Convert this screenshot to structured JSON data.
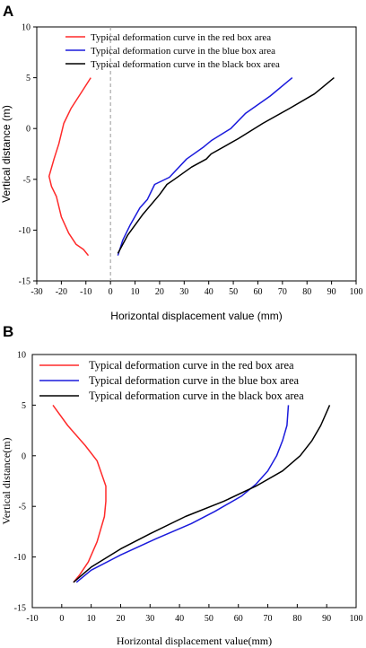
{
  "chart_data": [
    {
      "panel": "A",
      "type": "line",
      "xlabel": "Horizontal displacement value (mm)",
      "ylabel": "Vertical distance (m)",
      "xlim": [
        -30,
        100
      ],
      "ylim": [
        -15,
        10
      ],
      "xticks": [
        -30,
        -20,
        -10,
        0,
        10,
        20,
        30,
        40,
        50,
        60,
        70,
        80,
        90,
        100
      ],
      "yticks": [
        -15,
        -10,
        -5,
        0,
        5,
        10
      ],
      "zero_line": true,
      "legend": "top-left",
      "series": [
        {
          "name": "Typical deformation curve in the red box area",
          "color": "#ff2a2a",
          "points": [
            [
              -8,
              5
            ],
            [
              -12,
              3.5
            ],
            [
              -16,
              2
            ],
            [
              -19,
              0.5
            ],
            [
              -21,
              -1.5
            ],
            [
              -23,
              -3
            ],
            [
              -25,
              -4.7
            ],
            [
              -24,
              -5.7
            ],
            [
              -22,
              -6.7
            ],
            [
              -20,
              -8.7
            ],
            [
              -17,
              -10.3
            ],
            [
              -14,
              -11.4
            ],
            [
              -11,
              -11.9
            ],
            [
              -9,
              -12.5
            ]
          ]
        },
        {
          "name": "Typical deformation curve in the blue box area",
          "color": "#1a1adc",
          "points": [
            [
              74,
              5
            ],
            [
              65,
              3.2
            ],
            [
              55,
              1.5
            ],
            [
              49,
              0
            ],
            [
              41,
              -1.2
            ],
            [
              38,
              -1.8
            ],
            [
              31,
              -3
            ],
            [
              24,
              -4.8
            ],
            [
              18,
              -5.5
            ],
            [
              15,
              -7
            ],
            [
              12,
              -7.8
            ],
            [
              8,
              -9.5
            ],
            [
              5,
              -11
            ],
            [
              3,
              -12.5
            ]
          ]
        },
        {
          "name": "Typical deformation curve in the black box area",
          "color": "#000000",
          "points": [
            [
              91,
              5
            ],
            [
              86,
              4
            ],
            [
              83,
              3.4
            ],
            [
              73,
              2
            ],
            [
              62,
              0.5
            ],
            [
              52,
              -1
            ],
            [
              41,
              -2.5
            ],
            [
              39,
              -3
            ],
            [
              33,
              -3.8
            ],
            [
              26,
              -5
            ],
            [
              23,
              -5.5
            ],
            [
              20,
              -6.5
            ],
            [
              13,
              -8.5
            ],
            [
              7,
              -10.5
            ],
            [
              3,
              -12.3
            ]
          ]
        }
      ]
    },
    {
      "panel": "B",
      "type": "line",
      "xlabel": "Horizontal displacement value(mm)",
      "ylabel": "Vertical distance(m)",
      "xlim": [
        -10,
        100
      ],
      "ylim": [
        -15,
        10
      ],
      "xticks": [
        -10,
        0,
        10,
        20,
        30,
        40,
        50,
        60,
        70,
        80,
        90,
        100
      ],
      "yticks": [
        -15,
        -10,
        -5,
        0,
        5,
        10
      ],
      "zero_line": false,
      "legend": "top-left",
      "series": [
        {
          "name": "Typical deformation curve in the red box area",
          "color": "#ff2a2a",
          "points": [
            [
              -3,
              5
            ],
            [
              2,
              3
            ],
            [
              8,
              1
            ],
            [
              12,
              -0.5
            ],
            [
              15,
              -3
            ],
            [
              15,
              -4.5
            ],
            [
              14.5,
              -6
            ],
            [
              12,
              -8.5
            ],
            [
              9,
              -10.5
            ],
            [
              6,
              -11.8
            ],
            [
              4,
              -12.5
            ]
          ]
        },
        {
          "name": "Typical deformation curve in the blue box area",
          "color": "#1a1adc",
          "points": [
            [
              77,
              5
            ],
            [
              76.5,
              3
            ],
            [
              75,
              1.5
            ],
            [
              73,
              0
            ],
            [
              70,
              -1.5
            ],
            [
              66,
              -2.8
            ],
            [
              61,
              -4
            ],
            [
              52,
              -5.5
            ],
            [
              44,
              -6.7
            ],
            [
              32,
              -8.2
            ],
            [
              20,
              -9.8
            ],
            [
              10,
              -11.3
            ],
            [
              5,
              -12.5
            ]
          ]
        },
        {
          "name": "Typical deformation curve in the black box area",
          "color": "#000000",
          "points": [
            [
              91,
              5
            ],
            [
              88,
              3
            ],
            [
              85,
              1.5
            ],
            [
              81,
              0
            ],
            [
              75,
              -1.5
            ],
            [
              66,
              -3
            ],
            [
              55,
              -4.5
            ],
            [
              42,
              -6
            ],
            [
              30,
              -7.7
            ],
            [
              20,
              -9.2
            ],
            [
              10,
              -11
            ],
            [
              4,
              -12.5
            ]
          ]
        }
      ]
    }
  ],
  "panel_labels": [
    "A",
    "B"
  ]
}
